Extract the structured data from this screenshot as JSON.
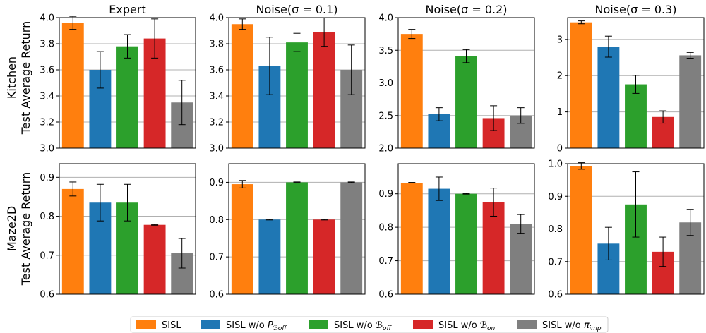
{
  "legend": {
    "entries": [
      {
        "label": "SISL",
        "color": "#ff7f0e"
      },
      {
        "label": "SISL w/o ",
        "symbol": "P",
        "sub": "ℬoff",
        "color": "#1f77b4"
      },
      {
        "label": "SISL w/o ",
        "symbol": "ℬ",
        "sub": "off",
        "color": "#2ca02c"
      },
      {
        "label": "SISL w/o ",
        "symbol": "ℬ",
        "sub": "on",
        "color": "#d62728"
      },
      {
        "label": "SISL w/o ",
        "symbol": "π",
        "sub": "imp",
        "color": "#7f7f7f"
      }
    ]
  },
  "rows": [
    {
      "line1": "Kitchen",
      "line2": "Test Average Return"
    },
    {
      "line1": "Maze2D",
      "line2": "Test Average Return"
    }
  ],
  "chart_data": [
    {
      "type": "bar",
      "row": 0,
      "col": 0,
      "title": "Expert",
      "ylabel": "Kitchen Test Average Return",
      "ylim": [
        3.0,
        4.0
      ],
      "yticks": [
        3.0,
        3.2,
        3.4,
        3.6,
        3.8,
        4.0
      ],
      "ytick_labels": [
        "3.0",
        "3.2",
        "3.4",
        "3.6",
        "3.8",
        "4.0"
      ],
      "grid": "y",
      "series": [
        {
          "name": "SISL",
          "value": 3.96,
          "err": 0.05
        },
        {
          "name": "SISL w/o P_Boff",
          "value": 3.6,
          "err": 0.14
        },
        {
          "name": "SISL w/o B_off",
          "value": 3.78,
          "err": 0.09
        },
        {
          "name": "SISL w/o B_on",
          "value": 3.84,
          "err": 0.15
        },
        {
          "name": "SISL w/o pi_imp",
          "value": 3.35,
          "err": 0.17
        }
      ]
    },
    {
      "type": "bar",
      "row": 0,
      "col": 1,
      "title": "Noise(σ = 0.1)",
      "ylim": [
        3.0,
        4.0
      ],
      "yticks": [
        3.0,
        3.2,
        3.4,
        3.6,
        3.8,
        4.0
      ],
      "ytick_labels": [
        "3.0",
        "3.2",
        "3.4",
        "3.6",
        "3.8",
        "4.0"
      ],
      "grid": "y",
      "series": [
        {
          "name": "SISL",
          "value": 3.95,
          "err": 0.04
        },
        {
          "name": "SISL w/o P_Boff",
          "value": 3.63,
          "err": 0.22
        },
        {
          "name": "SISL w/o B_off",
          "value": 3.81,
          "err": 0.07
        },
        {
          "name": "SISL w/o B_on",
          "value": 3.89,
          "err": 0.11
        },
        {
          "name": "SISL w/o pi_imp",
          "value": 3.6,
          "err": 0.19
        }
      ]
    },
    {
      "type": "bar",
      "row": 0,
      "col": 2,
      "title": "Noise(σ = 0.2)",
      "ylim": [
        2.0,
        4.0
      ],
      "yticks": [
        2.0,
        2.5,
        3.0,
        3.5,
        4.0
      ],
      "ytick_labels": [
        "2.0",
        "2.5",
        "3.0",
        "3.5",
        "4.0"
      ],
      "grid": "y",
      "series": [
        {
          "name": "SISL",
          "value": 3.75,
          "err": 0.07
        },
        {
          "name": "SISL w/o P_Boff",
          "value": 2.52,
          "err": 0.1
        },
        {
          "name": "SISL w/o B_off",
          "value": 3.41,
          "err": 0.1
        },
        {
          "name": "SISL w/o B_on",
          "value": 2.46,
          "err": 0.19
        },
        {
          "name": "SISL w/o pi_imp",
          "value": 2.5,
          "err": 0.12
        }
      ]
    },
    {
      "type": "bar",
      "row": 0,
      "col": 3,
      "title": "Noise(σ = 0.3)",
      "ylim": [
        0,
        3.6
      ],
      "yticks": [
        0,
        1,
        2,
        3
      ],
      "ytick_labels": [
        "0",
        "1",
        "2",
        "3"
      ],
      "grid": "y",
      "series": [
        {
          "name": "SISL",
          "value": 3.47,
          "err": 0.04
        },
        {
          "name": "SISL w/o P_Boff",
          "value": 2.8,
          "err": 0.29
        },
        {
          "name": "SISL w/o B_off",
          "value": 1.76,
          "err": 0.25
        },
        {
          "name": "SISL w/o B_on",
          "value": 0.86,
          "err": 0.17
        },
        {
          "name": "SISL w/o pi_imp",
          "value": 2.56,
          "err": 0.08
        }
      ]
    },
    {
      "type": "bar",
      "row": 1,
      "col": 0,
      "title": "",
      "ylabel": "Maze2D Test Average Return",
      "ylim": [
        0.6,
        0.935
      ],
      "yticks": [
        0.6,
        0.7,
        0.8,
        0.9
      ],
      "ytick_labels": [
        "0.6",
        "0.7",
        "0.8",
        "0.9"
      ],
      "grid": "y",
      "series": [
        {
          "name": "SISL",
          "value": 0.87,
          "err": 0.018
        },
        {
          "name": "SISL w/o P_Boff",
          "value": 0.835,
          "err": 0.047
        },
        {
          "name": "SISL w/o B_off",
          "value": 0.835,
          "err": 0.047
        },
        {
          "name": "SISL w/o B_on",
          "value": 0.778,
          "err": 0.001
        },
        {
          "name": "SISL w/o pi_imp",
          "value": 0.705,
          "err": 0.038
        }
      ]
    },
    {
      "type": "bar",
      "row": 1,
      "col": 1,
      "title": "",
      "ylim": [
        0.6,
        0.95
      ],
      "yticks": [
        0.6,
        0.7,
        0.8,
        0.9
      ],
      "ytick_labels": [
        "0.6",
        "0.7",
        "0.8",
        "0.9"
      ],
      "grid": "y",
      "series": [
        {
          "name": "SISL",
          "value": 0.895,
          "err": 0.01
        },
        {
          "name": "SISL w/o P_Boff",
          "value": 0.8,
          "err": 0.001
        },
        {
          "name": "SISL w/o B_off",
          "value": 0.9,
          "err": 0.001
        },
        {
          "name": "SISL w/o B_on",
          "value": 0.8,
          "err": 0.001
        },
        {
          "name": "SISL w/o pi_imp",
          "value": 0.9,
          "err": 0.001
        }
      ]
    },
    {
      "type": "bar",
      "row": 1,
      "col": 2,
      "title": "",
      "ylim": [
        0.6,
        0.99
      ],
      "yticks": [
        0.6,
        0.7,
        0.8,
        0.9
      ],
      "ytick_labels": [
        "0.6",
        "0.7",
        "0.8",
        "0.9"
      ],
      "grid": "y",
      "series": [
        {
          "name": "SISL",
          "value": 0.933,
          "err": 0.001
        },
        {
          "name": "SISL w/o P_Boff",
          "value": 0.915,
          "err": 0.035
        },
        {
          "name": "SISL w/o B_off",
          "value": 0.9,
          "err": 0.001
        },
        {
          "name": "SISL w/o B_on",
          "value": 0.875,
          "err": 0.042
        },
        {
          "name": "SISL w/o pi_imp",
          "value": 0.81,
          "err": 0.028
        }
      ]
    },
    {
      "type": "bar",
      "row": 1,
      "col": 3,
      "title": "",
      "ylim": [
        0.6,
        1.0
      ],
      "yticks": [
        0.6,
        0.7,
        0.8,
        0.9,
        1.0
      ],
      "ytick_labels": [
        "0.6",
        "0.7",
        "0.8",
        "0.9",
        "1.0"
      ],
      "grid": "y",
      "series": [
        {
          "name": "SISL",
          "value": 0.993,
          "err": 0.01
        },
        {
          "name": "SISL w/o P_Boff",
          "value": 0.755,
          "err": 0.05
        },
        {
          "name": "SISL w/o B_off",
          "value": 0.875,
          "err": 0.1
        },
        {
          "name": "SISL w/o B_on",
          "value": 0.73,
          "err": 0.045
        },
        {
          "name": "SISL w/o pi_imp",
          "value": 0.82,
          "err": 0.04
        }
      ]
    }
  ]
}
